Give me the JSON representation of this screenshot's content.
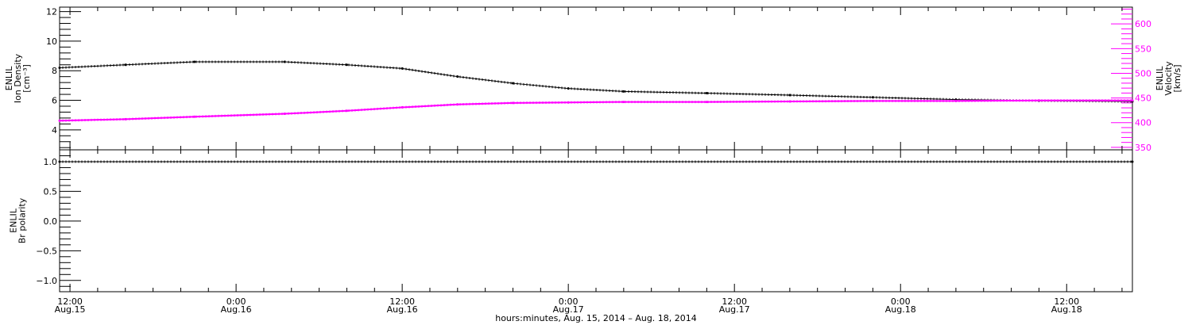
{
  "chart_data": [
    {
      "type": "line",
      "panel": "top",
      "x_unit": "hours since 12:00 Aug.15, 2014",
      "xlim": [
        -0.75,
        76.75
      ],
      "left_axis": {
        "label_lines": [
          "ENLIL",
          "Ion Density",
          "[cm⁻³]"
        ],
        "ylim": [
          2.65,
          12.3
        ],
        "major_ticks": [
          4,
          6,
          8,
          10,
          12
        ],
        "tick_labels": [
          "4",
          "6",
          "8",
          "10",
          "12"
        ],
        "color": "#000000"
      },
      "right_axis": {
        "label_lines": [
          "ENLIL",
          "Velocity",
          "[km/s]"
        ],
        "ylim": [
          345,
          634
        ],
        "major_ticks": [
          350,
          400,
          450,
          500,
          550,
          600
        ],
        "tick_labels": [
          "350",
          "400",
          "450",
          "500",
          "550",
          "600"
        ],
        "color": "#ff00ff"
      },
      "series": [
        {
          "name": "Ion Density",
          "axis": "left",
          "color": "#000000",
          "x": [
            -0.75,
            4,
            9,
            15.5,
            20,
            24,
            28,
            32,
            36,
            40,
            46,
            52,
            58,
            64,
            70,
            76.75
          ],
          "y": [
            8.2,
            8.4,
            8.6,
            8.6,
            8.4,
            8.15,
            7.6,
            7.15,
            6.8,
            6.6,
            6.48,
            6.35,
            6.2,
            6.05,
            5.97,
            5.92
          ]
        },
        {
          "name": "Velocity",
          "axis": "right",
          "color": "#ff00ff",
          "x": [
            -0.75,
            4,
            9,
            15.5,
            20,
            24,
            28,
            32,
            36,
            40,
            46,
            52,
            58,
            64,
            70,
            76.75
          ],
          "y": [
            404,
            407,
            412,
            418,
            424,
            431,
            437,
            440,
            441,
            442,
            442,
            443,
            444,
            444,
            445,
            445
          ]
        }
      ]
    },
    {
      "type": "line",
      "panel": "bottom",
      "x_unit": "hours since 12:00 Aug.15, 2014",
      "xlim": [
        -0.75,
        76.75
      ],
      "left_axis": {
        "label_lines": [
          "ENLIL",
          "Br polarity"
        ],
        "ylim": [
          -1.19,
          1.2
        ],
        "major_ticks": [
          -1.0,
          -0.5,
          0.0,
          0.5,
          1.0
        ],
        "tick_labels": [
          "−1.0",
          "−0.5",
          "0.0",
          "0.5",
          "1.0"
        ],
        "color": "#000000"
      },
      "series": [
        {
          "name": "Br polarity",
          "axis": "left",
          "color": "#000000",
          "x": [
            -0.75,
            76.75
          ],
          "y": [
            1.0,
            1.0
          ]
        }
      ]
    }
  ],
  "x_axis": {
    "major_ticks": [
      0,
      12,
      24,
      36,
      48,
      60,
      72
    ],
    "tick_labels": [
      [
        "12:00",
        "Aug.15"
      ],
      [
        "0:00",
        "Aug.16"
      ],
      [
        "12:00",
        "Aug.16"
      ],
      [
        "0:00",
        "Aug.17"
      ],
      [
        "12:00",
        "Aug.17"
      ],
      [
        "0:00",
        "Aug.18"
      ],
      [
        "12:00",
        "Aug.18"
      ]
    ],
    "minor_step_hours": 2,
    "title": "hours:minutes, Aug. 15, 2014 – Aug. 18, 2014"
  }
}
